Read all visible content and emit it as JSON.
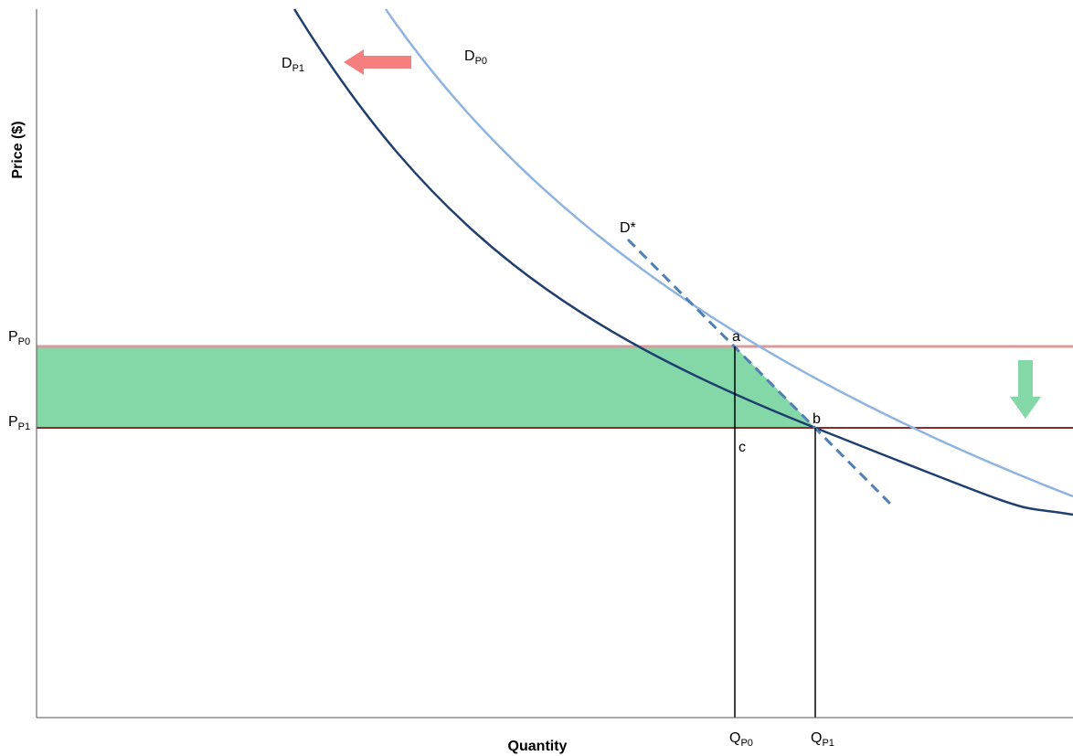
{
  "labels": {
    "y_axis_title": "Price ($)",
    "x_axis_title": "Quantity",
    "dp1_main": "D",
    "dp1_sub": "P1",
    "dp0_main": "D",
    "dp0_sub": "P0",
    "dstar": "D*",
    "pp0_main": "P",
    "pp0_sub": "P0",
    "pp1_main": "P",
    "pp1_sub": "P1",
    "qp0_main": "Q",
    "qp0_sub": "P0",
    "qp1_main": "Q",
    "qp1_sub": "P1",
    "point_a": "a",
    "point_b": "b",
    "point_c": "c"
  },
  "colors": {
    "demand_p1": "#1f3f6e",
    "demand_p0": "#8fb4e0",
    "dstar": "#4f7fb5",
    "price_p0_line": "#d99a9a",
    "price_p1_line": "#8b2a2a",
    "surplus_area": "#84d8a8",
    "shift_left_arrow": "#f57f7f",
    "shift_down_arrow": "#84d8a8",
    "axis": "#555555",
    "guide_lines": "#000000"
  }
}
